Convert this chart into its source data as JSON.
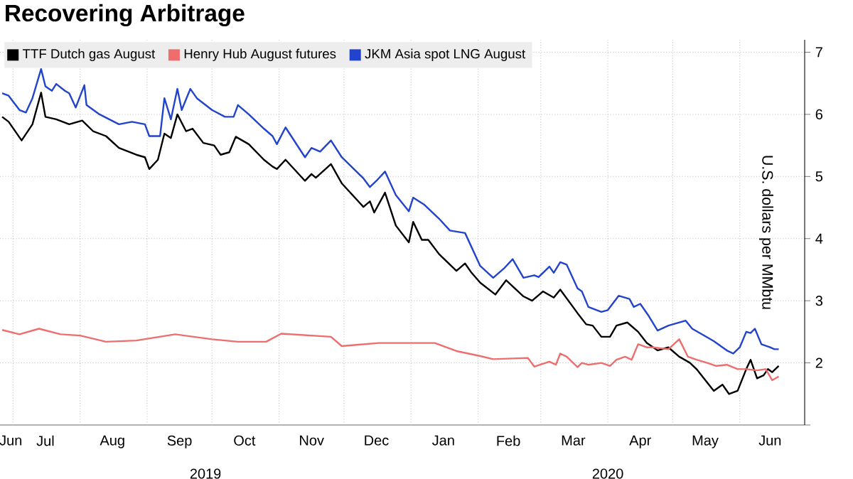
{
  "chart_data": {
    "type": "line",
    "title": "Recovering Arbitrage",
    "ylabel": "U.S. dollars per MMbtu",
    "xlim": [
      "2019-06-25",
      "2020-07-01"
    ],
    "xticks": [
      {
        "value": "2019-06-30",
        "label": "Jun"
      },
      {
        "value": "2019-07-01",
        "label": null
      },
      {
        "value": "2019-07-16",
        "label": "Jul"
      },
      {
        "value": "2019-08-01",
        "label": null
      },
      {
        "value": "2019-08-16",
        "label": "Aug"
      },
      {
        "value": "2019-09-01",
        "label": null
      },
      {
        "value": "2019-09-16",
        "label": "Sep"
      },
      {
        "value": "2019-10-01",
        "label": null
      },
      {
        "value": "2019-10-16",
        "label": "Oct"
      },
      {
        "value": "2019-11-01",
        "label": null
      },
      {
        "value": "2019-11-16",
        "label": "Nov"
      },
      {
        "value": "2019-12-01",
        "label": null
      },
      {
        "value": "2019-12-16",
        "label": "Dec"
      },
      {
        "value": "2020-01-01",
        "label": null
      },
      {
        "value": "2020-01-16",
        "label": "Jan"
      },
      {
        "value": "2020-02-01",
        "label": null
      },
      {
        "value": "2020-02-15",
        "label": "Feb"
      },
      {
        "value": "2020-03-01",
        "label": null
      },
      {
        "value": "2020-03-16",
        "label": "Mar"
      },
      {
        "value": "2020-04-01",
        "label": null
      },
      {
        "value": "2020-04-16",
        "label": "Apr"
      },
      {
        "value": "2020-05-01",
        "label": null
      },
      {
        "value": "2020-05-16",
        "label": "May"
      },
      {
        "value": "2020-06-01",
        "label": null
      },
      {
        "value": "2020-06-15",
        "label": "Jun"
      }
    ],
    "x2lim": [
      "2019-06-25",
      "2020-07-01"
    ],
    "x2ticks": [
      {
        "value": "2019-09-28",
        "label": "2019"
      },
      {
        "value": "2020-01-01",
        "label": null
      },
      {
        "value": "2020-04-01",
        "label": "2020"
      }
    ],
    "ylim": [
      1,
      7.2
    ],
    "yticks": [
      {
        "value": 1,
        "label": null
      },
      2,
      3,
      4,
      5,
      6,
      7
    ],
    "grid": true,
    "legend": "top left",
    "line_style": "solid",
    "series": [
      {
        "name": "TTF Dutch gas August",
        "color": "#000000",
        "x": [
          "2019-06-26",
          "2019-06-29",
          "2019-07-05",
          "2019-07-10",
          "2019-07-14",
          "2019-07-16",
          "2019-07-21",
          "2019-07-27",
          "2019-08-02",
          "2019-08-07",
          "2019-08-13",
          "2019-08-19",
          "2019-08-27",
          "2019-08-31",
          "2019-09-02",
          "2019-09-06",
          "2019-09-09",
          "2019-09-12",
          "2019-09-15",
          "2019-09-19",
          "2019-09-22",
          "2019-09-27",
          "2019-10-02",
          "2019-10-05",
          "2019-10-09",
          "2019-10-12",
          "2019-10-18",
          "2019-10-25",
          "2019-10-29",
          "2019-10-31",
          "2019-11-04",
          "2019-11-13",
          "2019-11-16",
          "2019-11-18",
          "2019-11-25",
          "2019-11-30",
          "2019-12-10",
          "2019-12-13",
          "2019-12-15",
          "2019-12-20",
          "2019-12-25",
          "2019-12-31",
          "2020-01-02",
          "2020-01-06",
          "2020-01-09",
          "2020-01-14",
          "2020-01-22",
          "2020-01-26",
          "2020-01-29",
          "2020-02-02",
          "2020-02-09",
          "2020-02-14",
          "2020-02-22",
          "2020-02-26",
          "2020-03-02",
          "2020-03-07",
          "2020-03-10",
          "2020-03-18",
          "2020-03-22",
          "2020-03-25",
          "2020-03-29",
          "2020-04-02",
          "2020-04-05",
          "2020-04-10",
          "2020-04-15",
          "2020-04-19",
          "2020-04-24",
          "2020-04-29",
          "2020-05-04",
          "2020-05-09",
          "2020-05-12",
          "2020-05-20",
          "2020-05-24",
          "2020-05-27",
          "2020-05-31",
          "2020-06-04",
          "2020-06-06",
          "2020-06-09",
          "2020-06-12",
          "2020-06-14",
          "2020-06-16",
          "2020-06-19"
        ],
        "values": [
          5.96,
          5.88,
          5.58,
          5.84,
          6.35,
          5.96,
          5.92,
          5.84,
          5.9,
          5.73,
          5.65,
          5.46,
          5.35,
          5.31,
          5.12,
          5.27,
          5.69,
          5.62,
          6.0,
          5.73,
          5.77,
          5.54,
          5.5,
          5.35,
          5.39,
          5.64,
          5.52,
          5.27,
          5.16,
          5.12,
          5.27,
          4.93,
          5.04,
          4.98,
          5.2,
          4.89,
          4.51,
          4.6,
          4.42,
          4.74,
          4.21,
          3.94,
          4.27,
          3.98,
          3.98,
          3.75,
          3.48,
          3.6,
          3.45,
          3.29,
          3.1,
          3.33,
          3.07,
          3.0,
          3.15,
          3.05,
          3.18,
          2.8,
          2.62,
          2.6,
          2.42,
          2.42,
          2.6,
          2.65,
          2.5,
          2.32,
          2.2,
          2.25,
          2.1,
          2.0,
          1.9,
          1.55,
          1.65,
          1.5,
          1.55,
          1.9,
          2.05,
          1.75,
          1.8,
          1.9,
          1.85,
          1.95
        ]
      },
      {
        "name": "Henry Hub August futures",
        "color": "#ee6e6e",
        "x": [
          "2019-06-26",
          "2019-07-04",
          "2019-07-13",
          "2019-07-23",
          "2019-08-01",
          "2019-08-13",
          "2019-08-27",
          "2019-09-14",
          "2019-10-01",
          "2019-10-13",
          "2019-10-26",
          "2019-11-02",
          "2019-11-25",
          "2019-11-30",
          "2019-12-17",
          "2020-01-12",
          "2020-01-22",
          "2020-02-02",
          "2020-02-08",
          "2020-02-24",
          "2020-02-27",
          "2020-03-05",
          "2020-03-08",
          "2020-03-10",
          "2020-03-13",
          "2020-03-18",
          "2020-03-20",
          "2020-03-23",
          "2020-03-29",
          "2020-04-02",
          "2020-04-05",
          "2020-04-09",
          "2020-04-12",
          "2020-04-15",
          "2020-04-19",
          "2020-04-22",
          "2020-04-29",
          "2020-05-04",
          "2020-05-08",
          "2020-05-12",
          "2020-05-17",
          "2020-05-21",
          "2020-05-26",
          "2020-05-31",
          "2020-06-04",
          "2020-06-09",
          "2020-06-13",
          "2020-06-16",
          "2020-06-19"
        ],
        "values": [
          2.53,
          2.46,
          2.55,
          2.46,
          2.44,
          2.34,
          2.36,
          2.46,
          2.38,
          2.34,
          2.34,
          2.47,
          2.42,
          2.27,
          2.32,
          2.32,
          2.19,
          2.11,
          2.06,
          2.08,
          1.94,
          2.02,
          1.97,
          2.15,
          2.1,
          1.93,
          2.0,
          1.97,
          2.0,
          1.95,
          2.05,
          2.1,
          2.05,
          2.3,
          2.25,
          2.25,
          2.22,
          2.38,
          2.1,
          2.05,
          2.0,
          1.95,
          1.97,
          1.9,
          1.9,
          1.88,
          1.9,
          1.72,
          1.78
        ]
      },
      {
        "name": "JKM Asia spot LNG August",
        "color": "#2244cc",
        "x": [
          "2019-06-26",
          "2019-06-29",
          "2019-07-04",
          "2019-07-07",
          "2019-07-10",
          "2019-07-14",
          "2019-07-16",
          "2019-07-19",
          "2019-07-21",
          "2019-07-25",
          "2019-07-27",
          "2019-07-30",
          "2019-08-03",
          "2019-08-04",
          "2019-08-10",
          "2019-08-19",
          "2019-08-25",
          "2019-08-31",
          "2019-09-02",
          "2019-09-07",
          "2019-09-09",
          "2019-09-12",
          "2019-09-15",
          "2019-09-17",
          "2019-09-21",
          "2019-09-24",
          "2019-10-01",
          "2019-10-07",
          "2019-10-11",
          "2019-10-13",
          "2019-10-18",
          "2019-10-25",
          "2019-10-29",
          "2019-10-31",
          "2019-11-04",
          "2019-11-13",
          "2019-11-16",
          "2019-11-20",
          "2019-11-25",
          "2019-11-30",
          "2019-12-10",
          "2019-12-13",
          "2019-12-16",
          "2019-12-20",
          "2019-12-25",
          "2019-12-31",
          "2020-01-02",
          "2020-01-07",
          "2020-01-14",
          "2020-01-19",
          "2020-01-26",
          "2020-02-02",
          "2020-02-08",
          "2020-02-13",
          "2020-02-17",
          "2020-02-22",
          "2020-02-27",
          "2020-02-29",
          "2020-03-05",
          "2020-03-07",
          "2020-03-10",
          "2020-03-13",
          "2020-03-18",
          "2020-03-20",
          "2020-03-23",
          "2020-03-29",
          "2020-04-01",
          "2020-04-06",
          "2020-04-11",
          "2020-04-13",
          "2020-04-16",
          "2020-04-20",
          "2020-04-24",
          "2020-04-29",
          "2020-05-07",
          "2020-05-10",
          "2020-05-15",
          "2020-05-20",
          "2020-05-24",
          "2020-05-26",
          "2020-05-29",
          "2020-06-01",
          "2020-06-04",
          "2020-06-06",
          "2020-06-08",
          "2020-06-11",
          "2020-06-15",
          "2020-06-17",
          "2020-06-19"
        ],
        "values": [
          6.34,
          6.3,
          6.07,
          6.03,
          6.26,
          6.73,
          6.45,
          6.38,
          6.49,
          6.38,
          6.34,
          6.11,
          6.47,
          6.15,
          6.0,
          5.84,
          5.88,
          5.84,
          5.65,
          5.65,
          6.26,
          5.92,
          6.41,
          6.07,
          6.41,
          6.26,
          6.07,
          5.96,
          5.96,
          6.15,
          6.0,
          5.77,
          5.65,
          5.52,
          5.79,
          5.31,
          5.46,
          5.4,
          5.58,
          5.31,
          4.97,
          4.83,
          4.93,
          5.08,
          4.7,
          4.44,
          4.66,
          4.55,
          4.32,
          4.13,
          4.09,
          3.56,
          3.37,
          3.52,
          3.67,
          3.37,
          3.41,
          3.38,
          3.55,
          3.45,
          3.62,
          3.58,
          3.2,
          3.15,
          2.9,
          2.82,
          2.85,
          3.08,
          3.03,
          2.9,
          2.95,
          2.75,
          2.52,
          2.6,
          2.68,
          2.55,
          2.45,
          2.35,
          2.25,
          2.2,
          2.15,
          2.25,
          2.5,
          2.48,
          2.55,
          2.3,
          2.25,
          2.22,
          2.22
        ]
      }
    ]
  }
}
